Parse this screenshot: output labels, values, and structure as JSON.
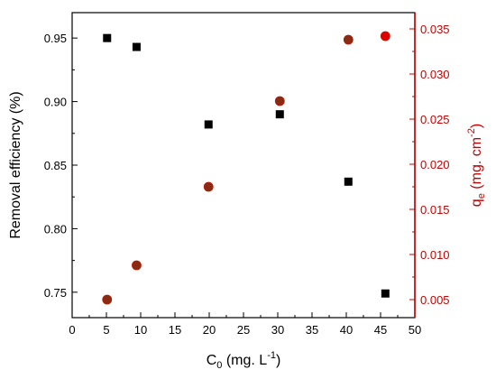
{
  "chart_data": {
    "type": "scatter",
    "xlabel": {
      "main": "C",
      "sub": "0",
      "rest": " (mg. L",
      "sup": "-1",
      "end": ")"
    },
    "ylabel_left": "Removal efficiency (%)",
    "ylabel_right": {
      "main": "q",
      "sub": "e",
      "rest": " (mg. cm",
      "sup": "-2",
      "end": ")"
    },
    "xlim": [
      0,
      50
    ],
    "ylim_left": [
      0.73,
      0.97
    ],
    "ylim_right": [
      0.003,
      0.0368
    ],
    "x_ticks": [
      0,
      5,
      10,
      15,
      20,
      25,
      30,
      35,
      40,
      45,
      50
    ],
    "x_tick_labels": [
      "0",
      "5",
      "10",
      "15",
      "20",
      "25",
      "30",
      "35",
      "40",
      "45",
      "50"
    ],
    "y_left_ticks": [
      0.75,
      0.8,
      0.85,
      0.9,
      0.95
    ],
    "y_left_tick_labels": [
      "0.75",
      "0.80",
      "0.85",
      "0.90",
      "0.95"
    ],
    "y_right_ticks": [
      0.005,
      0.01,
      0.015,
      0.02,
      0.025,
      0.03,
      0.035
    ],
    "y_right_tick_labels": [
      "0.005",
      "0.010",
      "0.015",
      "0.020",
      "0.025",
      "0.030",
      "0.035"
    ],
    "grid": false,
    "legend": "none",
    "series": [
      {
        "axis": "left",
        "marker": "square",
        "color": "#000000",
        "points": [
          {
            "x": 5.1,
            "y": 0.95
          },
          {
            "x": 9.4,
            "y": 0.943
          },
          {
            "x": 19.9,
            "y": 0.882
          },
          {
            "x": 30.3,
            "y": 0.89
          },
          {
            "x": 40.3,
            "y": 0.837
          },
          {
            "x": 45.7,
            "y": 0.749
          }
        ]
      },
      {
        "axis": "right",
        "marker": "circle",
        "color": "#8b2a12",
        "highlight_color": "#e00000",
        "points": [
          {
            "x": 5.1,
            "y": 0.005
          },
          {
            "x": 9.4,
            "y": 0.0088
          },
          {
            "x": 19.9,
            "y": 0.0175
          },
          {
            "x": 30.3,
            "y": 0.027
          },
          {
            "x": 40.3,
            "y": 0.0338
          },
          {
            "x": 45.7,
            "y": 0.0342
          }
        ]
      }
    ],
    "colors": {
      "left_axis": "#000000",
      "right_axis": "#c80000"
    }
  }
}
